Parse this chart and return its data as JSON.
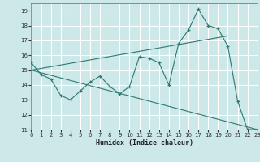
{
  "xlabel": "Humidex (Indice chaleur)",
  "bg_color": "#cce8e8",
  "grid_color": "#ffffff",
  "line_color": "#2d7a70",
  "x_data": [
    0,
    1,
    2,
    3,
    4,
    5,
    6,
    7,
    8,
    9,
    10,
    11,
    12,
    13,
    14,
    15,
    16,
    17,
    18,
    19,
    20,
    21,
    22,
    23
  ],
  "y_main": [
    15.5,
    14.7,
    14.4,
    13.3,
    13.0,
    13.6,
    14.2,
    14.6,
    13.9,
    13.4,
    13.9,
    15.9,
    15.8,
    15.5,
    14.0,
    16.8,
    17.7,
    19.1,
    18.0,
    17.8,
    16.6,
    12.9,
    11.0,
    11.0
  ],
  "trend1_x": [
    0,
    20
  ],
  "trend1_y": [
    15.0,
    17.3
  ],
  "trend2_x": [
    0,
    23
  ],
  "trend2_y": [
    15.0,
    11.0
  ],
  "xlim": [
    0,
    23
  ],
  "ylim": [
    11,
    19.5
  ],
  "yticks": [
    11,
    12,
    13,
    14,
    15,
    16,
    17,
    18,
    19
  ],
  "xticks": [
    0,
    1,
    2,
    3,
    4,
    5,
    6,
    7,
    8,
    9,
    10,
    11,
    12,
    13,
    14,
    15,
    16,
    17,
    18,
    19,
    20,
    21,
    22,
    23
  ]
}
